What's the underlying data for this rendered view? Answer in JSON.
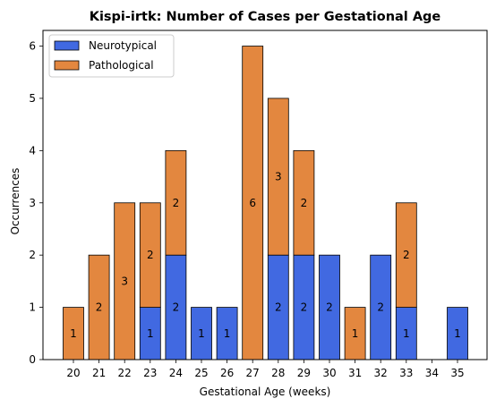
{
  "chart_data": {
    "type": "bar",
    "stacked": true,
    "title": "Kispi-irtk: Number of Cases per Gestational Age",
    "xlabel": "Gestational Age (weeks)",
    "ylabel": "Occurrences",
    "categories": [
      "20",
      "21",
      "22",
      "23",
      "24",
      "25",
      "26",
      "27",
      "28",
      "29",
      "30",
      "31",
      "32",
      "33",
      "34",
      "35"
    ],
    "ylim": [
      0,
      6.3
    ],
    "yticks": [
      0,
      1,
      2,
      3,
      4,
      5,
      6
    ],
    "grid": false,
    "legend_position": "top-left",
    "series": [
      {
        "name": "Neurotypical",
        "color": "#4169e1",
        "values": [
          0,
          0,
          0,
          1,
          2,
          1,
          1,
          0,
          2,
          2,
          2,
          0,
          2,
          1,
          0,
          1
        ]
      },
      {
        "name": "Pathological",
        "color": "#e3873f",
        "values": [
          1,
          2,
          3,
          2,
          2,
          0,
          0,
          6,
          3,
          2,
          0,
          1,
          0,
          2,
          0,
          0
        ]
      }
    ]
  }
}
